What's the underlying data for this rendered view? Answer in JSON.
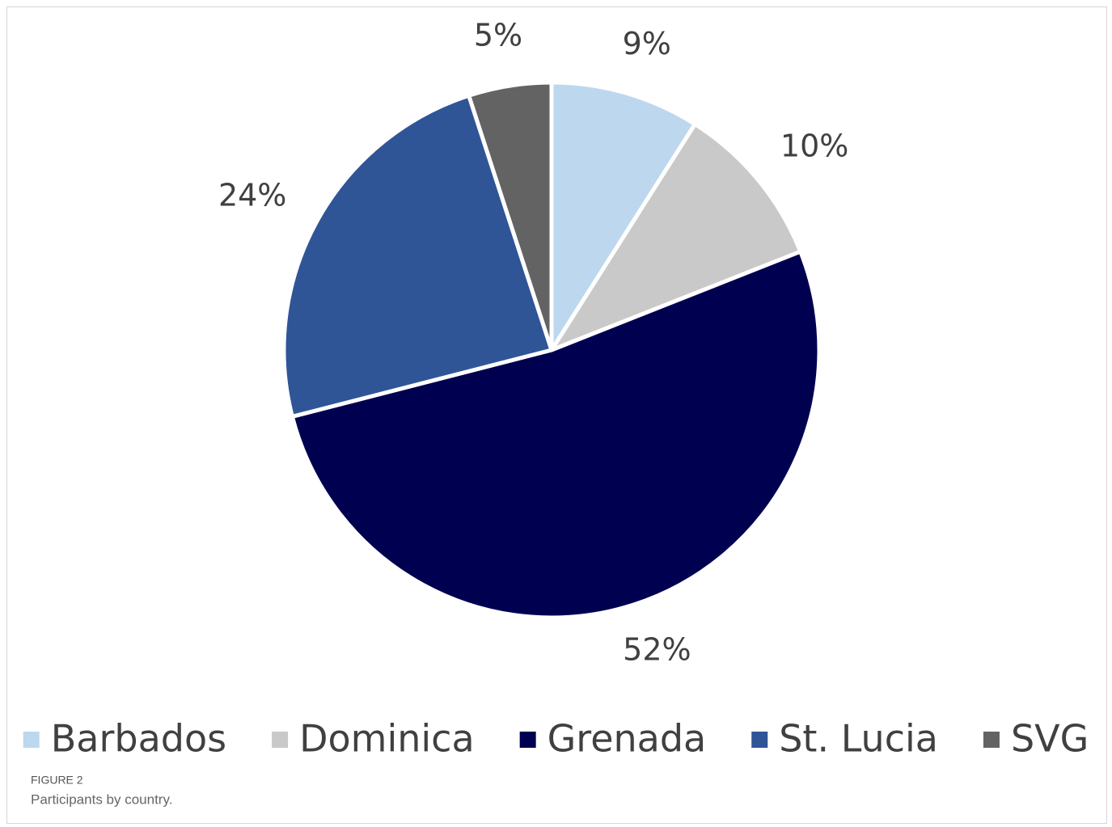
{
  "chart_data": {
    "type": "pie",
    "categories": [
      "Barbados",
      "Dominica",
      "Grenada",
      "St. Lucia",
      "SVG"
    ],
    "values": [
      9,
      10,
      52,
      24,
      5
    ],
    "value_labels": [
      "9%",
      "10%",
      "52%",
      "24%",
      "5%"
    ],
    "colors": [
      "#bdd7ee",
      "#c9c9c9",
      "#000050",
      "#2f5597",
      "#636363"
    ],
    "legend": "bottom"
  },
  "caption": {
    "label": "FIGURE 2",
    "text": "Participants by country."
  }
}
